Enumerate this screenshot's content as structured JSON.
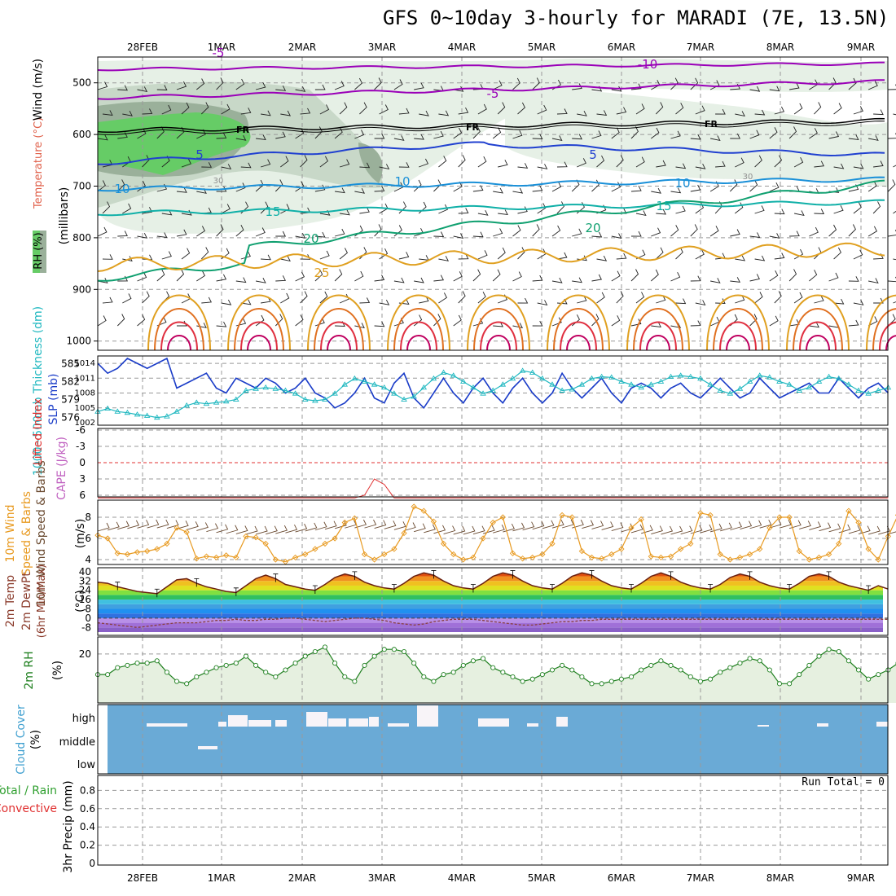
{
  "title": "GFS 0~10day 3-hourly for MARADI (7E, 13.5N)",
  "dates": [
    "28FEB",
    "1MAR",
    "2MAR",
    "3MAR",
    "4MAR",
    "5MAR",
    "6MAR",
    "7MAR",
    "8MAR",
    "9MAR"
  ],
  "chart_data": [
    {
      "type": "area",
      "name": "upper-air",
      "ylabel_parts": [
        "RH (%)",
        "Temperature (°C)",
        "Wind (m/s)"
      ],
      "yaxis_label": "(millibars)",
      "y_ticks": [
        500,
        600,
        700,
        800,
        900,
        1000
      ],
      "ylim": [
        1050,
        450
      ],
      "freezing_label": "FR",
      "contour_labels": [
        {
          "text": "-10",
          "color": "#9a00b8"
        },
        {
          "text": "-5",
          "color": "#9a00b8"
        },
        {
          "text": "-5",
          "color": "#9a00b8"
        },
        {
          "text": "5",
          "color": "#2040d0"
        },
        {
          "text": "5",
          "color": "#2040d0"
        },
        {
          "text": "10",
          "color": "#1a90d8"
        },
        {
          "text": "10",
          "color": "#1a90d8"
        },
        {
          "text": "10",
          "color": "#1a90d8"
        },
        {
          "text": "15",
          "color": "#10b0a8"
        },
        {
          "text": "15",
          "color": "#10b0a8"
        },
        {
          "text": "20",
          "color": "#10a070"
        },
        {
          "text": "20",
          "color": "#10a070"
        },
        {
          "text": "25",
          "color": "#e0a020"
        },
        {
          "text": "30",
          "color": "#909090"
        },
        {
          "text": "30",
          "color": "#909090"
        }
      ]
    },
    {
      "type": "line",
      "name": "slp-thickness",
      "ylabel_left": "1000~500mb Thickness (dm)",
      "ylabel_right": "SLP (mb)",
      "thickness_ticks": [
        576,
        579,
        582,
        585
      ],
      "slp_ticks": [
        1002,
        1005,
        1008,
        1011,
        1014
      ],
      "series": [
        {
          "name": "SLP",
          "color": "#1a3cc8",
          "values": [
            1014,
            1012,
            1013,
            1015,
            1014,
            1013,
            1014,
            1015,
            1009,
            1010,
            1011,
            1012,
            1009,
            1008,
            1011,
            1010,
            1009,
            1011,
            1010,
            1008,
            1009,
            1011,
            1008,
            1007,
            1005,
            1006,
            1008,
            1011,
            1007,
            1006,
            1010,
            1012,
            1007,
            1005,
            1008,
            1011,
            1008,
            1006,
            1009,
            1011,
            1008,
            1006,
            1009,
            1011,
            1008,
            1006,
            1008,
            1012,
            1009,
            1007,
            1009,
            1011,
            1008,
            1006,
            1009,
            1010,
            1009,
            1007,
            1009,
            1010,
            1008,
            1007,
            1009,
            1011,
            1009,
            1007,
            1008,
            1011,
            1009,
            1007,
            1008,
            1009,
            1010,
            1008,
            1008,
            1011,
            1009,
            1007,
            1009,
            1010,
            1008
          ]
        },
        {
          "name": "Thickness",
          "color": "#20b8c0",
          "values": [
            577,
            577.5,
            577,
            576.8,
            576.5,
            576.3,
            576,
            576.2,
            577,
            578,
            578.5,
            578.3,
            578.5,
            578.7,
            579,
            580.5,
            580.8,
            581,
            580.8,
            580.5,
            580,
            579,
            578.8,
            579,
            580,
            581.5,
            582.5,
            582,
            581.5,
            581,
            580,
            579,
            579.5,
            581,
            582.5,
            583.5,
            583,
            582,
            581,
            580,
            580.5,
            581.5,
            582.5,
            583.8,
            583.5,
            582.5,
            581.5,
            580.5,
            580.7,
            581.5,
            582.5,
            582.8,
            582.7,
            582,
            581.5,
            581,
            581.5,
            582,
            582.8,
            583,
            582.8,
            582.5,
            581.5,
            580.5,
            580,
            580.8,
            582,
            583,
            582.7,
            582,
            581.5,
            580.5,
            581,
            582,
            582.8,
            582.5,
            581.5,
            580.5,
            580,
            580.5,
            581
          ]
        }
      ]
    },
    {
      "type": "line",
      "name": "lifted-index-cape",
      "ylabel_left": "Lifted Index",
      "ylabel_right": "CAPE (J/kg)",
      "y_ticks": [
        -6,
        -3,
        0,
        3,
        6
      ],
      "series": [
        {
          "name": "Lifted Index",
          "color": "#e03030",
          "values": [
            10,
            10,
            10,
            10,
            10,
            10,
            10,
            10,
            10,
            10,
            10,
            10,
            10,
            10,
            10,
            10,
            10,
            10,
            10,
            10,
            10,
            10,
            10,
            10,
            10,
            10,
            10,
            6,
            3,
            4,
            10,
            10,
            10,
            10,
            10,
            10,
            10,
            9,
            7,
            9,
            10,
            10,
            10,
            10,
            10,
            10,
            10,
            8,
            7,
            10,
            10,
            10,
            10,
            10,
            10,
            10,
            10,
            10,
            10,
            10,
            10,
            10,
            10,
            10,
            10,
            10,
            10,
            10,
            10,
            10,
            10,
            10,
            10,
            10,
            10,
            10,
            10,
            10,
            10,
            10,
            10
          ]
        }
      ]
    },
    {
      "type": "line",
      "name": "wind-10m",
      "ylabel": "10m Wind Speed & Barbs",
      "unit": "(m/s)",
      "y_ticks": [
        4,
        6,
        8
      ],
      "series": [
        {
          "name": "10m Wind Speed",
          "color": "#e89a20",
          "values": [
            6.3,
            6,
            4.6,
            4.5,
            4.7,
            4.8,
            5,
            5.5,
            7,
            6.6,
            4.1,
            4.3,
            4.2,
            4.4,
            4.2,
            6.2,
            6.1,
            5.5,
            4,
            3.8,
            4.2,
            4.5,
            5,
            5.5,
            6,
            7.5,
            7.9,
            4.5,
            4,
            4.5,
            5,
            6.5,
            9,
            8.6,
            7.6,
            5.5,
            4.5,
            4,
            4.2,
            6,
            7.5,
            8,
            4.6,
            4.1,
            4.2,
            4.5,
            5.5,
            8.2,
            8,
            4.8,
            4.2,
            4.1,
            4.5,
            5,
            7,
            7.8,
            4.3,
            4.2,
            4.3,
            5,
            5.5,
            8.4,
            8.2,
            4.5,
            4,
            4.2,
            4.5,
            5,
            7,
            8,
            8,
            4.8,
            4,
            4.2,
            4.5,
            5.5,
            8.6,
            7.5,
            5,
            4,
            6.2,
            8.2,
            7.7,
            6,
            4.6,
            3.9,
            4.2,
            6
          ]
        }
      ]
    },
    {
      "type": "area",
      "name": "temp-2m",
      "ylabel": "2m Temp 2m DewPt (6hr Min/Max)",
      "unit": "(°C)",
      "y_ticks": [
        -8,
        0,
        8,
        16,
        24,
        32,
        40
      ],
      "series": [
        {
          "name": "2m Temp",
          "color": "#6a2010",
          "values": [
            31,
            30,
            27,
            25,
            23,
            22,
            21,
            27,
            33,
            34,
            30,
            27,
            25,
            23,
            22,
            28,
            34,
            37,
            34,
            29,
            27,
            25,
            24,
            29,
            35,
            38,
            36,
            31,
            28,
            26,
            25,
            30,
            36,
            39,
            37,
            32,
            28,
            26,
            25,
            30,
            36,
            39,
            37,
            32,
            28,
            26,
            25,
            30,
            36,
            39,
            37,
            32,
            28,
            26,
            25,
            30,
            36,
            39,
            36,
            31,
            28,
            26,
            25,
            29,
            35,
            38,
            36,
            31,
            28,
            26,
            25,
            30,
            36,
            38,
            36,
            31,
            28,
            26,
            24,
            28,
            25
          ]
        },
        {
          "name": "2m DewPt",
          "color": "#8a4040",
          "values": [
            -4,
            -5,
            -6,
            -7,
            -8,
            -7,
            -6,
            -5,
            -4,
            -4,
            -4,
            -3,
            -2,
            -2,
            -1,
            -2,
            -2,
            -1,
            -1,
            0,
            0,
            -1,
            -2,
            -3,
            -2,
            -1,
            0,
            0,
            -1,
            -2,
            -4,
            -5,
            -6,
            -5,
            -3,
            -2,
            -1,
            -1,
            -1,
            -2,
            -3,
            -4,
            -5,
            -6,
            -6,
            -5,
            -4,
            -3,
            -3,
            -2,
            -2,
            -1,
            -1,
            -1,
            -1,
            -1,
            -1,
            -1,
            -1,
            -1,
            -1,
            -1,
            -1,
            -1,
            -1,
            -1,
            -1,
            -1,
            -1,
            -1,
            -1,
            -1,
            -1,
            -1,
            -1,
            -1,
            -1,
            -1,
            -1,
            -1,
            -1
          ]
        }
      ]
    },
    {
      "type": "line",
      "name": "rh-2m",
      "ylabel": "2m RH",
      "unit": "(%)",
      "y_ticks": [
        20
      ],
      "series": [
        {
          "name": "2m RH",
          "color": "#208020",
          "values": [
            11,
            11,
            14,
            15,
            16,
            16,
            17,
            12,
            8,
            7,
            10,
            12,
            14,
            15,
            16,
            19,
            15,
            12,
            10,
            13,
            16,
            19,
            21,
            23,
            16,
            10,
            8,
            15,
            19,
            22,
            22,
            21,
            16,
            10,
            8,
            11,
            12,
            15,
            17,
            18,
            14,
            12,
            10,
            8,
            9,
            11,
            13,
            15,
            13,
            10,
            7,
            7,
            8,
            9,
            10,
            13,
            15,
            17,
            15,
            13,
            10,
            8,
            9,
            12,
            14,
            16,
            18,
            17,
            13,
            7,
            7,
            11,
            15,
            19,
            22,
            21,
            17,
            13,
            9,
            11,
            13,
            16,
            18,
            19
          ]
        }
      ]
    },
    {
      "type": "bar",
      "name": "cloud-cover",
      "ylabel": "Cloud Cover",
      "unit": "(%)",
      "levels": [
        "high",
        "middle",
        "low"
      ]
    },
    {
      "type": "bar",
      "name": "precip",
      "ylabel_parts": [
        "Total / Rain",
        "Convective",
        "3hr Precip (mm)"
      ],
      "y_ticks": [
        0,
        0.2,
        0.4,
        0.6,
        0.8
      ],
      "run_total": "Run Total = 0"
    }
  ],
  "colors": {
    "rh_dark": "#9ab09a",
    "rh_mid": "#c8d8c8",
    "rh_light": "#e6f0e6",
    "rh_green": "#66cc66",
    "cloud_bg": "#6aaad6",
    "rh_fill": "#e6f0e0"
  }
}
